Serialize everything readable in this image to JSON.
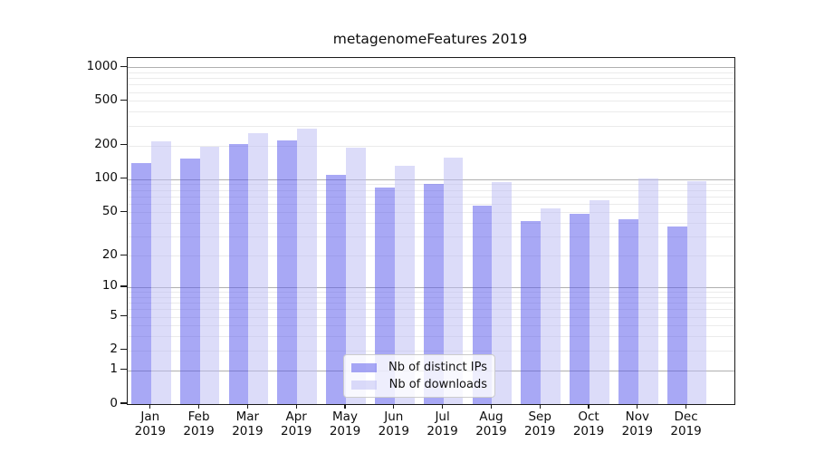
{
  "title": "metagenomeFeatures 2019",
  "chart_data": {
    "type": "bar",
    "title": "metagenomeFeatures 2019",
    "categories": [
      "Jan",
      "Feb",
      "Mar",
      "Apr",
      "May",
      "Jun",
      "Jul",
      "Aug",
      "Sep",
      "Oct",
      "Nov",
      "Dec"
    ],
    "category_year": "2019",
    "series": [
      {
        "name": "Nb of distinct IPs",
        "color": "#a9a9f5",
        "color_rgba": "rgba(81,81,235,0.5)",
        "values": [
          138,
          152,
          206,
          223,
          109,
          84,
          91,
          58,
          42,
          49,
          43,
          37
        ]
      },
      {
        "name": "Nb of downloads",
        "color": "#dcdcf9",
        "color_rgba": "rgba(185,185,243,0.5)",
        "values": [
          219,
          196,
          258,
          285,
          191,
          131,
          155,
          94,
          54,
          64,
          101,
          95
        ]
      }
    ],
    "xlabel": "",
    "ylabel": "",
    "y_axis": {
      "scale": "log1p",
      "tick_values": [
        0,
        1,
        2,
        5,
        10,
        20,
        50,
        100,
        200,
        500,
        1000
      ],
      "range_top": 1211
    },
    "grid": "on",
    "grid_major_values": [
      1,
      10,
      100,
      1000
    ],
    "grid_major_color": "#b0b0b0",
    "grid_minor_color": "#ebebeb",
    "legend_position": "lower center"
  },
  "legend": {
    "items": [
      "Nb of distinct IPs",
      "Nb of downloads"
    ]
  }
}
